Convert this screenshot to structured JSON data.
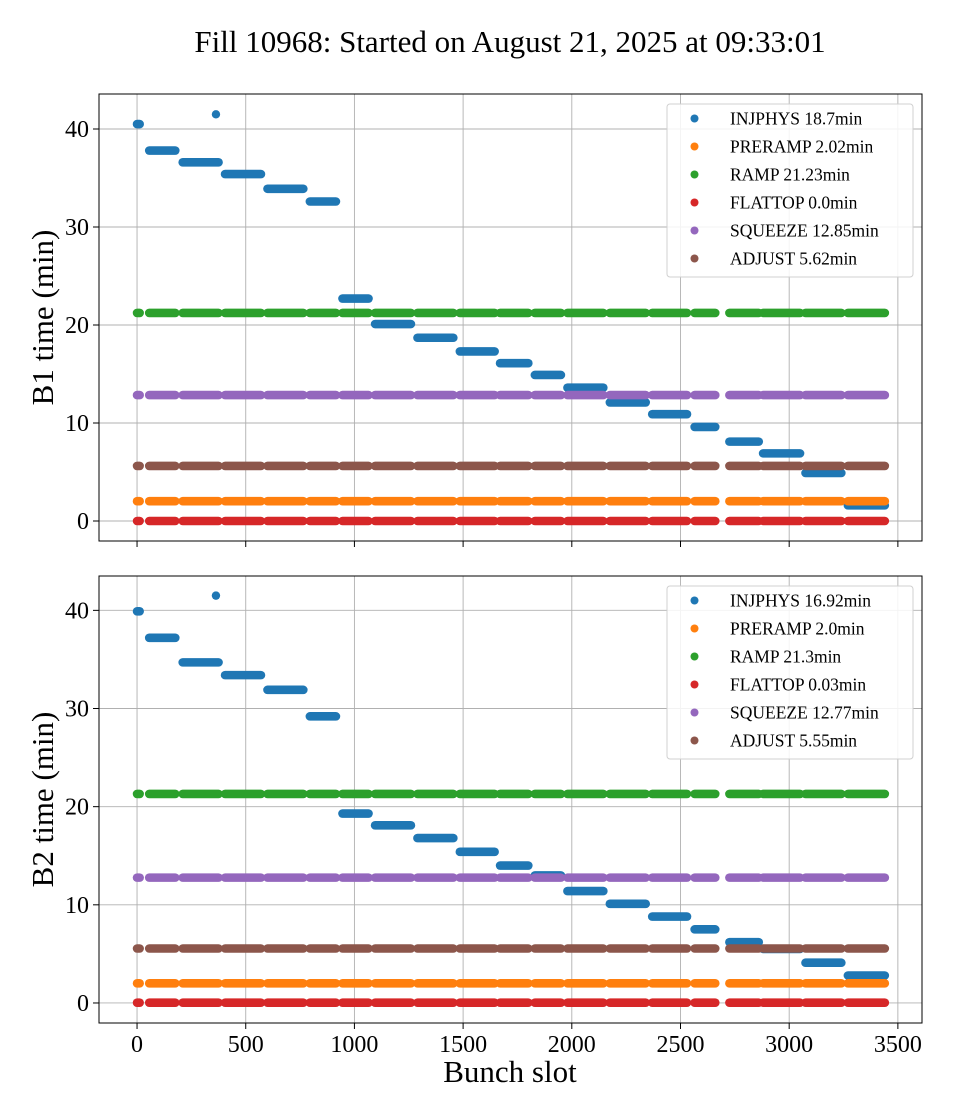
{
  "chart_data": {
    "type": "scatter",
    "title": "Fill 10968: Started on August 21, 2025 at 09:33:01",
    "xlabel": "Bunch slot",
    "xlim": [
      -175,
      3611
    ],
    "xticks": [
      0,
      500,
      1000,
      1500,
      2000,
      2500,
      3000,
      3500
    ],
    "yticks": [
      0,
      10,
      20,
      30,
      40
    ],
    "grid": true,
    "legend_placement": "upper right",
    "colors": {
      "INJPHYS": "#1f77b4",
      "PRERAMP": "#ff7f0e",
      "RAMP": "#2ca02c",
      "FLATTOP": "#d62728",
      "SQUEEZE": "#9467bd",
      "ADJUST": "#8c564b"
    },
    "trains": [
      {
        "first": 0,
        "last": 12
      },
      {
        "first": 56,
        "last": 176
      },
      {
        "first": 210,
        "last": 375
      },
      {
        "first": 405,
        "last": 570
      },
      {
        "first": 600,
        "last": 765
      },
      {
        "first": 795,
        "last": 915
      },
      {
        "first": 945,
        "last": 1065
      },
      {
        "first": 1095,
        "last": 1260
      },
      {
        "first": 1290,
        "last": 1455
      },
      {
        "first": 1485,
        "last": 1645
      },
      {
        "first": 1670,
        "last": 1800
      },
      {
        "first": 1830,
        "last": 1950
      },
      {
        "first": 1980,
        "last": 2145
      },
      {
        "first": 2175,
        "last": 2340
      },
      {
        "first": 2370,
        "last": 2530
      },
      {
        "first": 2565,
        "last": 2660
      },
      {
        "first": 2725,
        "last": 2860
      },
      {
        "first": 2880,
        "last": 3050
      },
      {
        "first": 3075,
        "last": 3240
      },
      {
        "first": 3270,
        "last": 3440
      }
    ],
    "panels": [
      {
        "ylabel": "B1 time (min)",
        "ylim": [
          -2.04,
          43.57
        ],
        "legend": [
          "INJPHYS 18.7min",
          "PRERAMP 2.02min",
          "RAMP 21.23min",
          "FLATTOP 0.0min",
          "SQUEEZE 12.85min",
          "ADJUST 5.62min"
        ],
        "extra_points": [
          {
            "phase": "INJPHYS",
            "x": 363,
            "y": 41.5
          }
        ],
        "series": [
          {
            "name": "INJPHYS",
            "values": [
              40.5,
              37.8,
              36.6,
              35.4,
              33.9,
              32.6,
              22.7,
              20.1,
              18.7,
              17.3,
              16.1,
              14.9,
              13.6,
              12.1,
              10.9,
              9.6,
              8.1,
              6.9,
              4.9,
              1.6
            ]
          },
          {
            "name": "PRERAMP",
            "value": 2.02
          },
          {
            "name": "RAMP",
            "value": 21.23
          },
          {
            "name": "FLATTOP",
            "value": 0.0
          },
          {
            "name": "SQUEEZE",
            "value": 12.85
          },
          {
            "name": "ADJUST",
            "value": 5.62
          }
        ]
      },
      {
        "ylabel": "B2 time (min)",
        "ylim": [
          -2.04,
          43.5
        ],
        "legend": [
          "INJPHYS 16.92min",
          "PRERAMP 2.0min",
          "RAMP 21.3min",
          "FLATTOP 0.03min",
          "SQUEEZE 12.77min",
          "ADJUST 5.55min"
        ],
        "extra_points": [
          {
            "phase": "INJPHYS",
            "x": 363,
            "y": 41.5
          }
        ],
        "series": [
          {
            "name": "INJPHYS",
            "values": [
              39.9,
              37.2,
              34.7,
              33.4,
              31.9,
              29.2,
              19.3,
              18.1,
              16.8,
              15.4,
              14.0,
              13.0,
              11.4,
              10.1,
              8.8,
              7.5,
              6.2,
              5.5,
              4.1,
              2.8
            ]
          },
          {
            "name": "PRERAMP",
            "value": 2.0
          },
          {
            "name": "RAMP",
            "value": 21.3
          },
          {
            "name": "FLATTOP",
            "value": 0.03
          },
          {
            "name": "SQUEEZE",
            "value": 12.77
          },
          {
            "name": "ADJUST",
            "value": 5.55
          }
        ]
      }
    ]
  }
}
